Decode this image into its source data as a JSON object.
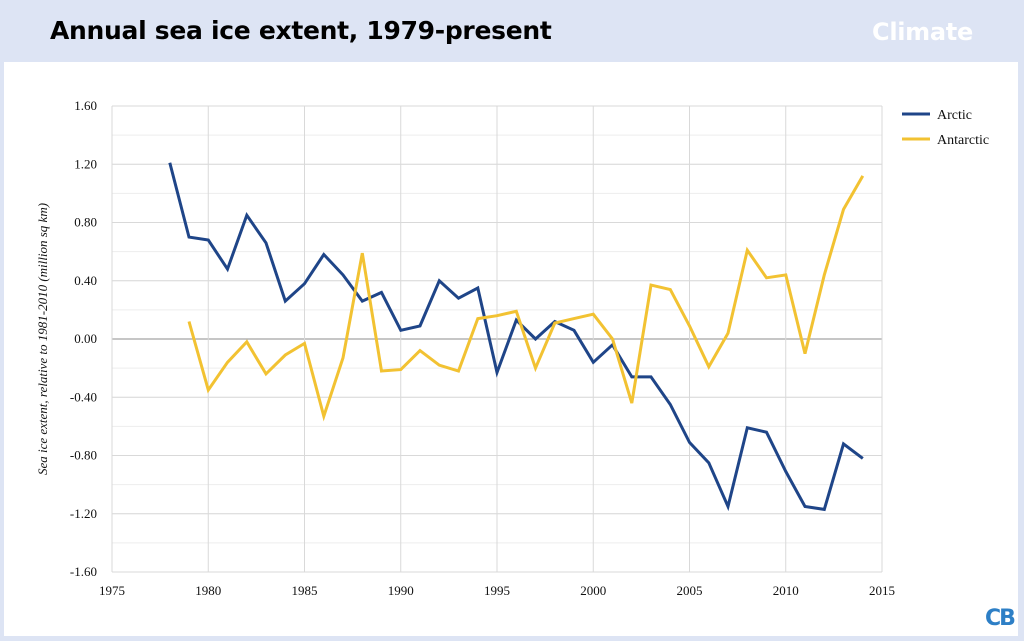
{
  "header": {
    "title": "Annual sea ice extent, 1979-present",
    "brand": "Climate"
  },
  "badge": "CB",
  "colors": {
    "arctic": "#1f4588",
    "antarctic": "#f2c232",
    "grid": "#d9d9d9",
    "zero_line": "#8c8c8c"
  },
  "chart_data": {
    "type": "line",
    "title": "",
    "xlabel": "",
    "ylabel": "Sea ice extent, relative to 1981-2010 (million sq km)",
    "xlim": [
      1975,
      2015
    ],
    "ylim": [
      -1.6,
      1.6
    ],
    "x_ticks": [
      1975,
      1980,
      1985,
      1990,
      1995,
      2000,
      2005,
      2010,
      2015
    ],
    "y_ticks": [
      1.6,
      1.2,
      0.8,
      0.4,
      0.0,
      -0.4,
      -0.8,
      -1.2,
      -1.6
    ],
    "x_tick_labels": [
      "1975",
      "1980",
      "1985",
      "1990",
      "1995",
      "2000",
      "2005",
      "2010",
      "2015"
    ],
    "y_tick_labels": [
      "1.60",
      "1.20",
      "0.80",
      "0.40",
      "0.00",
      "-0.40",
      "-0.80",
      "-1.20",
      "-1.60"
    ],
    "grid": true,
    "legend_position": "top-right",
    "series": [
      {
        "name": "Arctic",
        "color": "#1f4588",
        "x": [
          1978,
          1979,
          1980,
          1981,
          1982,
          1983,
          1984,
          1985,
          1986,
          1987,
          1988,
          1989,
          1990,
          1991,
          1992,
          1993,
          1994,
          1995,
          1996,
          1997,
          1998,
          1999,
          2000,
          2001,
          2002,
          2003,
          2004,
          2005,
          2006,
          2007,
          2008,
          2009,
          2010,
          2011,
          2012,
          2013,
          2014
        ],
        "y": [
          1.21,
          0.7,
          0.68,
          0.48,
          0.85,
          0.66,
          0.26,
          0.38,
          0.58,
          0.44,
          0.26,
          0.32,
          0.06,
          0.09,
          0.4,
          0.28,
          0.35,
          -0.23,
          0.13,
          0.0,
          0.12,
          0.06,
          -0.16,
          -0.04,
          -0.26,
          -0.26,
          -0.45,
          -0.71,
          -0.85,
          -1.15,
          -0.61,
          -0.64,
          -0.91,
          -1.15,
          -1.17,
          -0.72,
          -0.82
        ]
      },
      {
        "name": "Antarctic",
        "color": "#f2c232",
        "x": [
          1979,
          1980,
          1981,
          1982,
          1983,
          1984,
          1985,
          1986,
          1987,
          1988,
          1989,
          1990,
          1991,
          1992,
          1993,
          1994,
          1995,
          1996,
          1997,
          1998,
          1999,
          2000,
          2001,
          2002,
          2003,
          2004,
          2005,
          2006,
          2007,
          2008,
          2009,
          2010,
          2011,
          2012,
          2013,
          2014
        ],
        "y": [
          0.12,
          -0.35,
          -0.16,
          -0.02,
          -0.24,
          -0.11,
          -0.03,
          -0.53,
          -0.13,
          0.59,
          -0.22,
          -0.21,
          -0.08,
          -0.18,
          -0.22,
          0.14,
          0.16,
          0.19,
          -0.2,
          0.11,
          0.14,
          0.17,
          0.0,
          -0.44,
          0.37,
          0.34,
          0.09,
          -0.19,
          0.04,
          0.61,
          0.42,
          0.44,
          -0.1,
          0.44,
          0.89,
          1.12
        ]
      }
    ]
  }
}
